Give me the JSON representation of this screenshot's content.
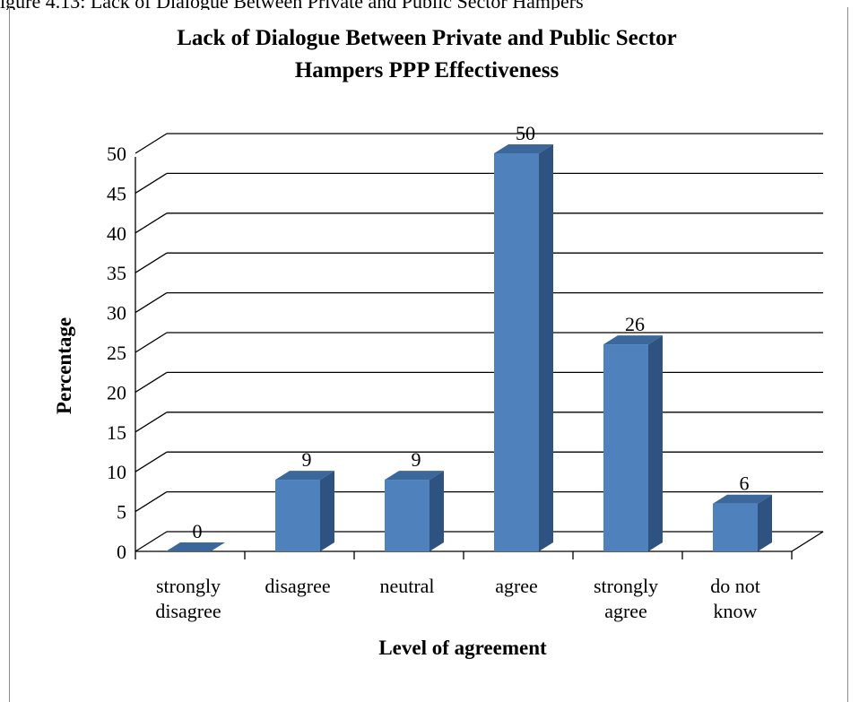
{
  "page": {
    "top_text": "igure 4.13: Lack of Dialogue Between Private and Public Sector Hampers"
  },
  "chart_data": {
    "type": "bar",
    "title": "Lack of Dialogue Between Private and Public Sector",
    "title_line2": "Hampers PPP Effectiveness",
    "xlabel": "Level of agreement",
    "ylabel": "Percentage",
    "categories": [
      [
        "strongly",
        "disagree"
      ],
      [
        "disagree"
      ],
      [
        "neutral"
      ],
      [
        "agree"
      ],
      [
        "strongly",
        "agree"
      ],
      [
        "do not",
        "know"
      ]
    ],
    "values": [
      0,
      9,
      9,
      50,
      26,
      6
    ],
    "ylim": [
      0,
      50
    ],
    "yticks": [
      0,
      5,
      10,
      15,
      20,
      25,
      30,
      35,
      40,
      45,
      50
    ],
    "grid": true,
    "legend": "none",
    "colors": {
      "bar_front": "#4f81bd",
      "bar_side": "#2f5380",
      "bar_top": "#3b679b",
      "grid": "#000000"
    }
  }
}
